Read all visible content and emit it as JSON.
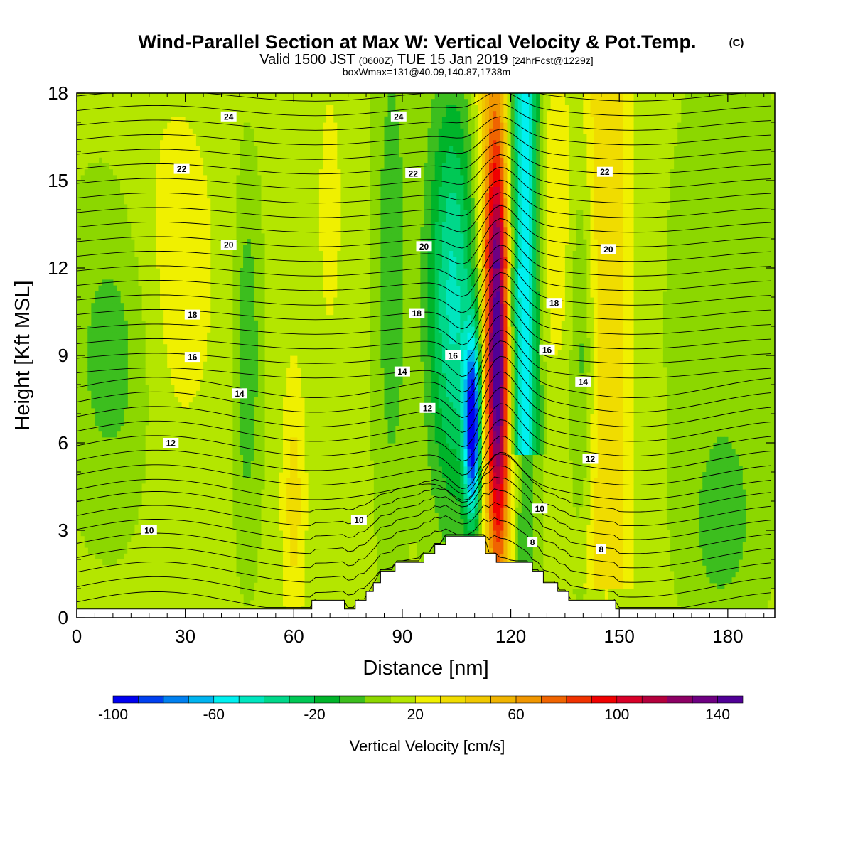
{
  "title": {
    "main": "Wind-Parallel Section at Max W: Vertical Velocity & Pot.Temp.",
    "copyright": "(C)",
    "valid_prefix": "Valid 1500 JST",
    "utc": "(0600Z)",
    "valid_date": "TUE 15 Jan 2019",
    "forecast": "[24hrFcst@1229z]",
    "box_max": "boxWmax=131@40.09,140.87,1738m"
  },
  "chart_data": {
    "type": "heatmap",
    "xlabel": "Distance [nm]",
    "ylabel": "Height [Kft MSL]",
    "xlim": [
      0,
      193
    ],
    "ylim": [
      0,
      18
    ],
    "x_ticks": [
      0,
      30,
      60,
      90,
      120,
      150,
      180
    ],
    "y_ticks": [
      0,
      3,
      6,
      9,
      12,
      15,
      18
    ],
    "colorbar": {
      "label": "Vertical Velocity [cm/s]",
      "min": -100,
      "max": 150,
      "step": 10,
      "tick_labels": [
        -100,
        -60,
        -20,
        20,
        60,
        100,
        140
      ],
      "colors": [
        "#0000f0",
        "#0040f0",
        "#0080f0",
        "#00b4f0",
        "#00f0f0",
        "#00e6bf",
        "#00d88a",
        "#00c855",
        "#00b42a",
        "#3cbe1e",
        "#8cd700",
        "#b4e600",
        "#f0f000",
        "#f0dc00",
        "#f0c800",
        "#f0b400",
        "#f09600",
        "#f06400",
        "#f03200",
        "#f00000",
        "#d80028",
        "#b4003c",
        "#8c0064",
        "#6e0082",
        "#500096"
      ]
    },
    "velocity_features": [
      {
        "type": "downdraft",
        "x": 109.5,
        "y_range": [
          2.8,
          10
        ],
        "peak": -100
      },
      {
        "type": "updraft",
        "x": 117,
        "y_range": [
          2.8,
          18
        ],
        "peak": 131
      },
      {
        "type": "downdraft",
        "x": 124,
        "y_range": [
          6,
          18
        ],
        "peak": -70
      },
      {
        "type": "updraft",
        "x": 60,
        "y_range": [
          0.5,
          9
        ],
        "peak": 30
      },
      {
        "type": "updraft",
        "x": 147,
        "y_range": [
          1,
          18
        ],
        "peak": 40
      },
      {
        "type": "downdraft",
        "x": 47,
        "y_range": [
          3,
          16
        ],
        "peak": -20
      }
    ],
    "terrain": [
      [
        0,
        0.3
      ],
      [
        65,
        0.3
      ],
      [
        65,
        0.6
      ],
      [
        74,
        0.6
      ],
      [
        74,
        0.3
      ],
      [
        77,
        0.3
      ],
      [
        77,
        0.6
      ],
      [
        80,
        0.6
      ],
      [
        80,
        0.9
      ],
      [
        82,
        0.9
      ],
      [
        82,
        1.2
      ],
      [
        84,
        1.2
      ],
      [
        84,
        1.6
      ],
      [
        88,
        1.6
      ],
      [
        88,
        1.9
      ],
      [
        96,
        1.9
      ],
      [
        96,
        2.2
      ],
      [
        99,
        2.2
      ],
      [
        99,
        2.5
      ],
      [
        102,
        2.5
      ],
      [
        102,
        2.8
      ],
      [
        113,
        2.8
      ],
      [
        113,
        2.2
      ],
      [
        116,
        2.2
      ],
      [
        116,
        1.9
      ],
      [
        126,
        1.9
      ],
      [
        126,
        1.6
      ],
      [
        129,
        1.6
      ],
      [
        129,
        1.2
      ],
      [
        133,
        1.2
      ],
      [
        133,
        0.9
      ],
      [
        136,
        0.9
      ],
      [
        136,
        0.6
      ],
      [
        149,
        0.6
      ],
      [
        149,
        0.3
      ],
      [
        193,
        0.3
      ]
    ],
    "theta_contours": {
      "interval": 0.5,
      "labels": [
        {
          "value": "24",
          "x": 42,
          "y": 17.2
        },
        {
          "value": "24",
          "x": 89,
          "y": 17.2
        },
        {
          "value": "22",
          "x": 29,
          "y": 15.4
        },
        {
          "value": "22",
          "x": 93,
          "y": 15.25
        },
        {
          "value": "22",
          "x": 146,
          "y": 15.3
        },
        {
          "value": "20",
          "x": 42,
          "y": 12.8
        },
        {
          "value": "20",
          "x": 96,
          "y": 12.75
        },
        {
          "value": "20",
          "x": 147,
          "y": 12.65
        },
        {
          "value": "18",
          "x": 32,
          "y": 10.4
        },
        {
          "value": "18",
          "x": 94,
          "y": 10.45
        },
        {
          "value": "18",
          "x": 132,
          "y": 10.8
        },
        {
          "value": "16",
          "x": 32,
          "y": 8.95
        },
        {
          "value": "16",
          "x": 104,
          "y": 9.0
        },
        {
          "value": "16",
          "x": 130,
          "y": 9.2
        },
        {
          "value": "14",
          "x": 45,
          "y": 7.7
        },
        {
          "value": "14",
          "x": 90,
          "y": 8.45
        },
        {
          "value": "14",
          "x": 140,
          "y": 8.1
        },
        {
          "value": "12",
          "x": 26,
          "y": 6.0
        },
        {
          "value": "12",
          "x": 97,
          "y": 7.2
        },
        {
          "value": "12",
          "x": 142,
          "y": 5.45
        },
        {
          "value": "10",
          "x": 20,
          "y": 3.0
        },
        {
          "value": "10",
          "x": 78,
          "y": 3.35
        },
        {
          "value": "10",
          "x": 128,
          "y": 3.75
        },
        {
          "value": "8",
          "x": 126,
          "y": 2.6
        },
        {
          "value": "8",
          "x": 145,
          "y": 2.35
        }
      ]
    }
  }
}
